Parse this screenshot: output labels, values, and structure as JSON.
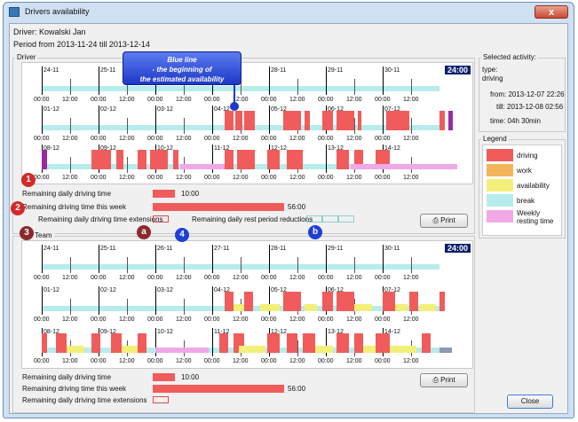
{
  "window": {
    "title": "Drivers availability",
    "close_glyph": "x"
  },
  "header": {
    "driver_line": "Driver: Kowalski Jan",
    "period_line": "Period from 2013-11-24 till 2013-12-14"
  },
  "driver_group": {
    "title": "Driver",
    "clock": "24:00"
  },
  "team_group": {
    "title": "Team",
    "clock": "24:00"
  },
  "callout": {
    "line1": "Blue line",
    "line2": "- the beginning of",
    "line3": "the estimated availability"
  },
  "weeks_driver": [
    [
      "24-11",
      "25-11",
      "26-11",
      "27-11",
      "28-11",
      "29-11",
      "30-11"
    ],
    [
      "01-12",
      "02-12",
      "03-12",
      "04-12",
      "05-12",
      "06-12",
      "07-12"
    ],
    [
      "08-12",
      "09-12",
      "10-12",
      "11-12",
      "12-12",
      "13-12",
      "14-12"
    ]
  ],
  "weeks_team": [
    [
      "24-11",
      "25-11",
      "26-11",
      "27-11",
      "28-11",
      "29-11",
      "30-11"
    ],
    [
      "01-12",
      "02-12",
      "03-12",
      "04-12",
      "05-12",
      "06-12",
      "07-12"
    ],
    [
      "08-12",
      "09-12",
      "10-12",
      "11-12",
      "12-12",
      "13-12",
      "14-12"
    ]
  ],
  "time_labels": [
    "00:00",
    "12:00"
  ],
  "driver_stats": {
    "daily": {
      "label": "Remaining daily driving time",
      "value": "10:00"
    },
    "weekly": {
      "label": "Remaining driving time this week",
      "value": "56:00"
    },
    "extensions": {
      "label": "Remaining daily driving time extensions"
    },
    "reductions": {
      "label": "Remaining daily rest period reductions"
    }
  },
  "team_stats": {
    "daily": {
      "label": "Remaining daily driving time",
      "value": "10:00"
    },
    "weekly": {
      "label": "Remaining driving time this week",
      "value": "56:00"
    },
    "extensions": {
      "label": "Remaining daily driving time extensions"
    }
  },
  "print_label": "Print",
  "selected_activity": {
    "title": "Selected activity:",
    "type_label": "type:",
    "type_value": "driving",
    "from": "from: 2013-12-07 22:26",
    "till": "till: 2013-12-08 02:56",
    "time": "time: 04h 30min"
  },
  "legend": {
    "title": "Legend",
    "items": [
      {
        "label": "driving",
        "color": "#f05c5c"
      },
      {
        "label": "work",
        "color": "#f4b55a"
      },
      {
        "label": "availability",
        "color": "#f3f07a"
      },
      {
        "label": "break",
        "color": "#b6ecec"
      },
      {
        "label": "Weekly resting time",
        "color": "#f0a8e6"
      }
    ]
  },
  "markers": {
    "m1": "1",
    "m2": "2",
    "m3": "3",
    "m4": "4",
    "ma": "a",
    "mb": "b"
  },
  "close_label": "Close",
  "colors": {
    "driving": "#f05c5c",
    "work": "#f4b55a",
    "availability": "#f3f07a",
    "break": "#b6ecec",
    "weekly_rest": "#f0a8e6",
    "accent_blue": "#1f3fd6",
    "marker_red": "#d42a2a",
    "marker_dark": "#8a2a2a"
  }
}
